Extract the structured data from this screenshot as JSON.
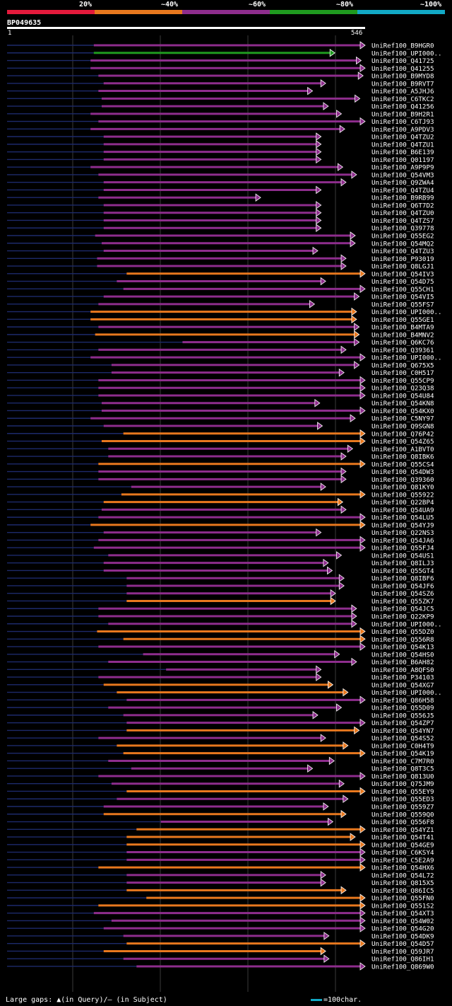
{
  "legend": {
    "labels": [
      "20%",
      "~40%",
      "~60%",
      "~80%",
      "~100%"
    ],
    "colors": [
      "#e41a3c",
      "#e8781e",
      "#8e2d8d",
      "#1f9a1f",
      "#12a9c6"
    ]
  },
  "query": {
    "name": "BP049635",
    "start": "1",
    "end": "546",
    "length": 546
  },
  "footer": {
    "gaps_note": "Large gaps: ▲(in Query)/— (in Subject)",
    "scale_note": "=100char."
  },
  "chart_data": {
    "type": "alignment",
    "query_length": 546,
    "hits": [
      {
        "name": "UniRef100_B9HGR0",
        "start": 133,
        "end": 546,
        "identity": "~60%"
      },
      {
        "name": "UniRef100_UPI000..",
        "start": 133,
        "end": 500,
        "identity": "~80%"
      },
      {
        "name": "UniRef100_Q41725",
        "start": 128,
        "end": 540,
        "identity": "~60%"
      },
      {
        "name": "UniRef100_Q41255",
        "start": 128,
        "end": 546,
        "identity": "~60%"
      },
      {
        "name": "UniRef100_B9MYD8",
        "start": 140,
        "end": 543,
        "identity": "~60%"
      },
      {
        "name": "UniRef100_B9RVT7",
        "start": 148,
        "end": 486,
        "identity": "~60%"
      },
      {
        "name": "UniRef100_A5JHJ6",
        "start": 140,
        "end": 466,
        "identity": "~60%"
      },
      {
        "name": "UniRef100_C6TKC2",
        "start": 145,
        "end": 538,
        "identity": "~60%"
      },
      {
        "name": "UniRef100_Q41256",
        "start": 145,
        "end": 490,
        "identity": "~60%"
      },
      {
        "name": "UniRef100_B9H2R1",
        "start": 128,
        "end": 510,
        "identity": "~60%"
      },
      {
        "name": "UniRef100_C6TJ93",
        "start": 140,
        "end": 546,
        "identity": "~60%"
      },
      {
        "name": "UniRef100_A9PDV3",
        "start": 128,
        "end": 515,
        "identity": "~60%"
      },
      {
        "name": "UniRef100_Q4TZU2",
        "start": 148,
        "end": 479,
        "identity": "~60%"
      },
      {
        "name": "UniRef100_Q4TZU1",
        "start": 148,
        "end": 479,
        "identity": "~60%"
      },
      {
        "name": "UniRef100_B6E139",
        "start": 148,
        "end": 479,
        "identity": "~60%"
      },
      {
        "name": "UniRef100_Q01197",
        "start": 148,
        "end": 479,
        "identity": "~60%"
      },
      {
        "name": "UniRef100_A9P9P9",
        "start": 128,
        "end": 512,
        "identity": "~60%"
      },
      {
        "name": "UniRef100_Q54VM3",
        "start": 140,
        "end": 533,
        "identity": "~60%"
      },
      {
        "name": "UniRef100_Q9ZWA4",
        "start": 148,
        "end": 517,
        "identity": "~60%"
      },
      {
        "name": "UniRef100_Q4TZU4",
        "start": 148,
        "end": 479,
        "identity": "~60%"
      },
      {
        "name": "UniRef100_B9RB99",
        "start": 140,
        "end": 387,
        "identity": "~60%"
      },
      {
        "name": "UniRef100_Q6T7D2",
        "start": 148,
        "end": 479,
        "identity": "~60%"
      },
      {
        "name": "UniRef100_Q4TZU0",
        "start": 148,
        "end": 479,
        "identity": "~60%"
      },
      {
        "name": "UniRef100_Q4TZS7",
        "start": 148,
        "end": 479,
        "identity": "~60%"
      },
      {
        "name": "UniRef100_Q39778",
        "start": 148,
        "end": 479,
        "identity": "~60%"
      },
      {
        "name": "UniRef100_Q55EG2",
        "start": 135,
        "end": 531,
        "identity": "~60%"
      },
      {
        "name": "UniRef100_Q54MQ2",
        "start": 145,
        "end": 531,
        "identity": "~60%"
      },
      {
        "name": "UniRef100_Q4TZU3",
        "start": 148,
        "end": 474,
        "identity": "~60%"
      },
      {
        "name": "UniRef100_P93019",
        "start": 138,
        "end": 517,
        "identity": "~60%"
      },
      {
        "name": "UniRef100_Q8LGJ1",
        "start": 138,
        "end": 517,
        "identity": "~60%"
      },
      {
        "name": "UniRef100_Q54IV3",
        "start": 183,
        "end": 546,
        "identity": "~40%"
      },
      {
        "name": "UniRef100_Q54D75",
        "start": 168,
        "end": 486,
        "identity": "~60%"
      },
      {
        "name": "UniRef100_Q55CH1",
        "start": 178,
        "end": 546,
        "identity": "~60%"
      },
      {
        "name": "UniRef100_Q54VI5",
        "start": 148,
        "end": 537,
        "identity": "~60%"
      },
      {
        "name": "UniRef100_Q55FS7",
        "start": 140,
        "end": 469,
        "identity": "~60%"
      },
      {
        "name": "UniRef100_UPI000..",
        "start": 128,
        "end": 533,
        "identity": "~40%"
      },
      {
        "name": "UniRef100_Q55GE1",
        "start": 128,
        "end": 533,
        "identity": "~40%"
      },
      {
        "name": "UniRef100_B4MTA9",
        "start": 140,
        "end": 537,
        "identity": "~60%"
      },
      {
        "name": "UniRef100_B4MNV2",
        "start": 135,
        "end": 537,
        "identity": "~40%"
      },
      {
        "name": "UniRef100_Q6KC76",
        "start": 268,
        "end": 537,
        "identity": "~60%"
      },
      {
        "name": "UniRef100_Q39361",
        "start": 140,
        "end": 517,
        "identity": "~60%"
      },
      {
        "name": "UniRef100_UPI000..",
        "start": 128,
        "end": 546,
        "identity": "~60%"
      },
      {
        "name": "UniRef100_Q675X5",
        "start": 160,
        "end": 537,
        "identity": "~60%"
      },
      {
        "name": "UniRef100_C0H517",
        "start": 160,
        "end": 514,
        "identity": "~60%"
      },
      {
        "name": "UniRef100_Q55CP9",
        "start": 140,
        "end": 546,
        "identity": "~60%"
      },
      {
        "name": "UniRef100_Q23Q38",
        "start": 140,
        "end": 546,
        "identity": "~60%"
      },
      {
        "name": "UniRef100_Q54U84",
        "start": 140,
        "end": 546,
        "identity": "~60%"
      },
      {
        "name": "UniRef100_Q54KN8",
        "start": 145,
        "end": 477,
        "identity": "~60%"
      },
      {
        "name": "UniRef100_Q54KX0",
        "start": 145,
        "end": 546,
        "identity": "~60%"
      },
      {
        "name": "UniRef100_C5NY97",
        "start": 128,
        "end": 531,
        "identity": "~60%"
      },
      {
        "name": "UniRef100_Q9SGN8",
        "start": 148,
        "end": 481,
        "identity": "~60%"
      },
      {
        "name": "UniRef100_Q76P42",
        "start": 178,
        "end": 546,
        "identity": "~40%"
      },
      {
        "name": "UniRef100_Q54Z65",
        "start": 145,
        "end": 546,
        "identity": "~40%"
      },
      {
        "name": "UniRef100_A1BVT0",
        "start": 155,
        "end": 527,
        "identity": "~60%"
      },
      {
        "name": "UniRef100_Q8IBK6",
        "start": 155,
        "end": 517,
        "identity": "~60%"
      },
      {
        "name": "UniRef100_Q55CS4",
        "start": 140,
        "end": 546,
        "identity": "~40%"
      },
      {
        "name": "UniRef100_Q54DW3",
        "start": 140,
        "end": 517,
        "identity": "~60%"
      },
      {
        "name": "UniRef100_Q39360",
        "start": 140,
        "end": 517,
        "identity": "~60%"
      },
      {
        "name": "UniRef100_Q81KY0",
        "start": 190,
        "end": 486,
        "identity": "~60%"
      },
      {
        "name": "UniRef100_Q55922",
        "start": 175,
        "end": 546,
        "identity": "~40%"
      },
      {
        "name": "UniRef100_Q22BP4",
        "start": 148,
        "end": 512,
        "identity": "~40%"
      },
      {
        "name": "UniRef100_Q54UA9",
        "start": 145,
        "end": 517,
        "identity": "~60%"
      },
      {
        "name": "UniRef100_Q54LU5",
        "start": 140,
        "end": 546,
        "identity": "~60%"
      },
      {
        "name": "UniRef100_Q54YJ9",
        "start": 128,
        "end": 546,
        "identity": "~40%"
      },
      {
        "name": "UniRef100_Q22NS3",
        "start": 148,
        "end": 479,
        "identity": "~60%"
      },
      {
        "name": "UniRef100_Q54JA6",
        "start": 140,
        "end": 546,
        "identity": "~60%"
      },
      {
        "name": "UniRef100_Q55FJ4",
        "start": 133,
        "end": 546,
        "identity": "~60%"
      },
      {
        "name": "UniRef100_Q54US1",
        "start": 155,
        "end": 510,
        "identity": "~60%"
      },
      {
        "name": "UniRef100_Q8ILJ3",
        "start": 148,
        "end": 490,
        "identity": "~60%"
      },
      {
        "name": "UniRef100_Q55GT4",
        "start": 148,
        "end": 496,
        "identity": "~60%"
      },
      {
        "name": "UniRef100_Q8IBF6",
        "start": 183,
        "end": 514,
        "identity": "~60%"
      },
      {
        "name": "UniRef100_Q54JF6",
        "start": 183,
        "end": 514,
        "identity": "~60%"
      },
      {
        "name": "UniRef100_Q54SZ6",
        "start": 183,
        "end": 501,
        "identity": "~60%"
      },
      {
        "name": "UniRef100_Q55ZK7",
        "start": 183,
        "end": 501,
        "identity": "~40%"
      },
      {
        "name": "UniRef100_Q54JC5",
        "start": 140,
        "end": 533,
        "identity": "~60%"
      },
      {
        "name": "UniRef100_Q22KP9",
        "start": 140,
        "end": 533,
        "identity": "~60%"
      },
      {
        "name": "UniRef100_UPI000..",
        "start": 155,
        "end": 533,
        "identity": "~60%"
      },
      {
        "name": "UniRef100_Q55DZ0",
        "start": 138,
        "end": 546,
        "identity": "~40%"
      },
      {
        "name": "UniRef100_Q556R8",
        "start": 178,
        "end": 546,
        "identity": "~40%"
      },
      {
        "name": "UniRef100_Q54K13",
        "start": 140,
        "end": 546,
        "identity": "~60%"
      },
      {
        "name": "UniRef100_Q54HS0",
        "start": 208,
        "end": 507,
        "identity": "~60%"
      },
      {
        "name": "UniRef100_B6AH82",
        "start": 155,
        "end": 533,
        "identity": "~60%"
      },
      {
        "name": "UniRef100_A8QFS0",
        "start": 243,
        "end": 479,
        "identity": "~60%"
      },
      {
        "name": "UniRef100_P34103",
        "start": 140,
        "end": 479,
        "identity": "~60%"
      },
      {
        "name": "UniRef100_Q54XG7",
        "start": 148,
        "end": 497,
        "identity": "~40%"
      },
      {
        "name": "UniRef100_UPI000..",
        "start": 168,
        "end": 520,
        "identity": "~40%"
      },
      {
        "name": "UniRef100_Q86H58",
        "start": 183,
        "end": 546,
        "identity": "~60%"
      },
      {
        "name": "UniRef100_Q55D09",
        "start": 155,
        "end": 510,
        "identity": "~60%"
      },
      {
        "name": "UniRef100_Q556J5",
        "start": 178,
        "end": 474,
        "identity": "~60%"
      },
      {
        "name": "UniRef100_Q54ZP7",
        "start": 183,
        "end": 546,
        "identity": "~60%"
      },
      {
        "name": "UniRef100_Q54YN7",
        "start": 183,
        "end": 537,
        "identity": "~40%"
      },
      {
        "name": "UniRef100_Q54S52",
        "start": 140,
        "end": 486,
        "identity": "~60%"
      },
      {
        "name": "UniRef100_C0H4T9",
        "start": 168,
        "end": 520,
        "identity": "~40%"
      },
      {
        "name": "UniRef100_Q54K19",
        "start": 178,
        "end": 546,
        "identity": "~40%"
      },
      {
        "name": "UniRef100_C7M7R0",
        "start": 155,
        "end": 499,
        "identity": "~60%"
      },
      {
        "name": "UniRef100_Q8T3C5",
        "start": 190,
        "end": 466,
        "identity": "~60%"
      },
      {
        "name": "UniRef100_Q813U0",
        "start": 140,
        "end": 546,
        "identity": "~60%"
      },
      {
        "name": "UniRef100_Q75JM9",
        "start": 160,
        "end": 514,
        "identity": "~60%"
      },
      {
        "name": "UniRef100_Q55EY9",
        "start": 183,
        "end": 546,
        "identity": "~40%"
      },
      {
        "name": "UniRef100_Q55ED3",
        "start": 168,
        "end": 520,
        "identity": "~60%"
      },
      {
        "name": "UniRef100_Q559Z7",
        "start": 148,
        "end": 490,
        "identity": "~60%"
      },
      {
        "name": "UniRef100_Q559Q0",
        "start": 148,
        "end": 517,
        "identity": "~40%"
      },
      {
        "name": "UniRef100_Q556F8",
        "start": 235,
        "end": 497,
        "identity": "~60%"
      },
      {
        "name": "UniRef100_Q54YZ1",
        "start": 198,
        "end": 546,
        "identity": "~40%"
      },
      {
        "name": "UniRef100_Q54T41",
        "start": 183,
        "end": 531,
        "identity": "~40%"
      },
      {
        "name": "UniRef100_Q54GE9",
        "start": 183,
        "end": 546,
        "identity": "~40%"
      },
      {
        "name": "UniRef100_C6KSY4",
        "start": 183,
        "end": 546,
        "identity": "~60%"
      },
      {
        "name": "UniRef100_C5E2A9",
        "start": 183,
        "end": 546,
        "identity": "~60%"
      },
      {
        "name": "UniRef100_Q54HX6",
        "start": 140,
        "end": 546,
        "identity": "~40%"
      },
      {
        "name": "UniRef100_Q54L72",
        "start": 183,
        "end": 486,
        "identity": "~60%"
      },
      {
        "name": "UniRef100_Q815X5",
        "start": 183,
        "end": 486,
        "identity": "~60%"
      },
      {
        "name": "UniRef100_Q86IC5",
        "start": 183,
        "end": 517,
        "identity": "~40%"
      },
      {
        "name": "UniRef100_Q55FN0",
        "start": 213,
        "end": 546,
        "identity": "~40%"
      },
      {
        "name": "UniRef100_Q551S2",
        "start": 140,
        "end": 546,
        "identity": "~40%"
      },
      {
        "name": "UniRef100_Q54XT3",
        "start": 133,
        "end": 546,
        "identity": "~60%"
      },
      {
        "name": "UniRef100_Q54W02",
        "start": 160,
        "end": 546,
        "identity": "~60%"
      },
      {
        "name": "UniRef100_Q54G20",
        "start": 148,
        "end": 546,
        "identity": "~60%"
      },
      {
        "name": "UniRef100_Q54DK9",
        "start": 178,
        "end": 491,
        "identity": "~60%"
      },
      {
        "name": "UniRef100_Q54D57",
        "start": 183,
        "end": 546,
        "identity": "~40%"
      },
      {
        "name": "UniRef100_Q59JR7",
        "start": 148,
        "end": 486,
        "identity": "~40%"
      },
      {
        "name": "UniRef100_Q86IH1",
        "start": 178,
        "end": 491,
        "identity": "~60%"
      },
      {
        "name": "UniRef100_Q869W0",
        "start": 198,
        "end": 546,
        "identity": "~60%"
      }
    ]
  }
}
